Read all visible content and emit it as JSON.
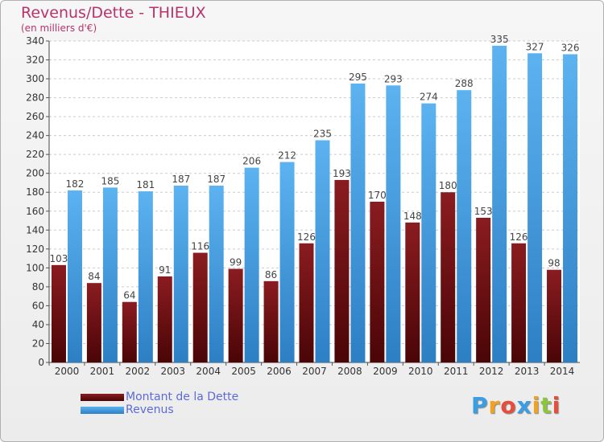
{
  "chart_data": {
    "type": "bar",
    "title": "Revenus/Dette - THIEUX",
    "subtitle": "(en milliers d'€)",
    "categories": [
      "2000",
      "2001",
      "2002",
      "2003",
      "2004",
      "2005",
      "2006",
      "2007",
      "2008",
      "2009",
      "2010",
      "2011",
      "2012",
      "2013",
      "2014"
    ],
    "series": [
      {
        "name": "Montant de la Dette",
        "color": "#7a1518",
        "values": [
          103,
          84,
          64,
          91,
          116,
          99,
          86,
          126,
          193,
          170,
          148,
          180,
          153,
          126,
          98
        ]
      },
      {
        "name": "Revenus",
        "color": "#4aa3e6",
        "values": [
          182,
          185,
          181,
          187,
          187,
          206,
          212,
          235,
          295,
          293,
          274,
          288,
          335,
          327,
          326
        ]
      }
    ],
    "ylim": [
      0,
      340
    ],
    "yticks": [
      0,
      20,
      40,
      60,
      80,
      100,
      120,
      140,
      160,
      180,
      200,
      220,
      240,
      260,
      280,
      300,
      320,
      340
    ],
    "grid": true,
    "legend": "bottom-left"
  },
  "logo": {
    "text": "Proxiti",
    "letters": [
      "P",
      "r",
      "o",
      "x",
      "i",
      "t",
      "i"
    ],
    "colors": [
      "#3a9ee4",
      "#f2a21c",
      "#e84d3c",
      "#3a9ee4",
      "#f2a21c",
      "#8cc63f",
      "#e84d3c"
    ]
  }
}
